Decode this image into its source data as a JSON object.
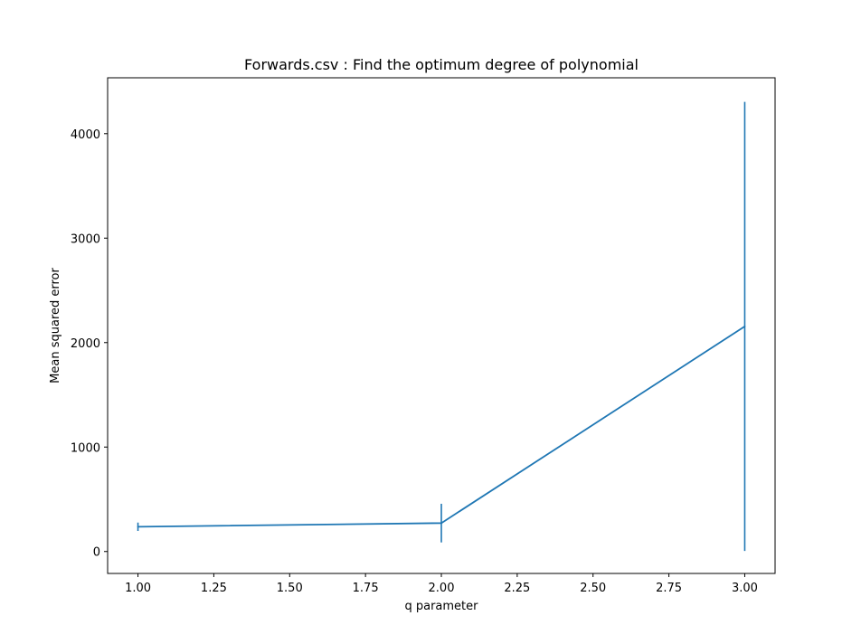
{
  "chart_data": {
    "type": "line",
    "title": "Forwards.csv : Find the optimum degree of polynomial",
    "xlabel": "q parameter",
    "ylabel": "Mean squared error",
    "xlim": [
      0.9,
      3.1
    ],
    "ylim": [
      -210,
      4535
    ],
    "x_ticks": [
      1.0,
      1.25,
      1.5,
      1.75,
      2.0,
      2.25,
      2.5,
      2.75,
      3.0
    ],
    "x_tick_labels": [
      "1.00",
      "1.25",
      "1.50",
      "1.75",
      "2.00",
      "2.25",
      "2.50",
      "2.75",
      "3.00"
    ],
    "y_ticks": [
      0,
      1000,
      2000,
      3000,
      4000
    ],
    "y_tick_labels": [
      "0",
      "1000",
      "2000",
      "3000",
      "4000"
    ],
    "grid": false,
    "series": [
      {
        "x": [
          1.0,
          2.0,
          3.0
        ],
        "y": [
          237,
          272,
          2155
        ],
        "yerr": [
          40,
          185,
          2150
        ],
        "color": "#1f77b4"
      }
    ]
  }
}
